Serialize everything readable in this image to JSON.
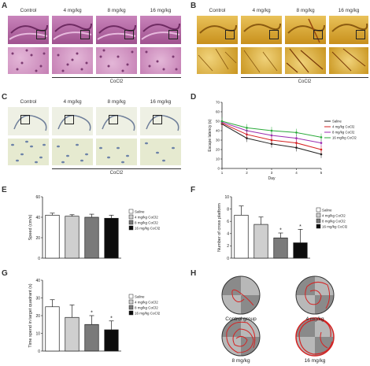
{
  "panels": {
    "A": {
      "label": "A",
      "cols": [
        "Control",
        "4 mg/kg",
        "8 mg/kg",
        "16 mg/kg"
      ],
      "group": "CoCl2"
    },
    "B": {
      "label": "B",
      "cols": [
        "Control",
        "4 mg/kg",
        "8 mg/kg",
        "16 mg/kg"
      ],
      "group": "CoCl2"
    },
    "C": {
      "label": "C",
      "cols": [
        "Control",
        "4 mg/kg",
        "8 mg/kg",
        "16 mg/kg"
      ],
      "group": "CoCl2"
    },
    "D": {
      "label": "D"
    },
    "E": {
      "label": "E"
    },
    "F": {
      "label": "F"
    },
    "G": {
      "label": "G"
    },
    "H": {
      "label": "H",
      "captions": [
        "Control group",
        "4 mg/kg",
        "8 mg/kg",
        "16 mg/kg"
      ]
    }
  },
  "colors": {
    "he_stain": "#b86aa6",
    "he_light": "#dcaad0",
    "silver_stain": "#d9a72e",
    "nissl_bg": "#e9ecd8",
    "bar_saline": "#ffffff",
    "bar_4": "#cfcfcf",
    "bar_8": "#7a7a7a",
    "bar_16": "#0c0c0c",
    "line_saline": "#222222",
    "line_4": "#d62020",
    "line_8": "#9b2bb0",
    "line_16": "#2aaa3a"
  },
  "chart_data": [
    {
      "id": "D",
      "type": "line",
      "ylabel": "Escape latency (s)",
      "xlabel": "Day",
      "x": [
        1,
        2,
        3,
        4,
        5
      ],
      "ylim": [
        0,
        70
      ],
      "yticks": [
        "0",
        "10",
        "20",
        "30",
        "40",
        "50",
        "60",
        "70"
      ],
      "series": [
        {
          "name": "Saline",
          "values": [
            47,
            32,
            26,
            22,
            15
          ],
          "color": "#222222"
        },
        {
          "name": "4 mg/kg CoCl2",
          "values": [
            48,
            36,
            30,
            27,
            20
          ],
          "color": "#d62020"
        },
        {
          "name": "8 mg/kg CoCl2",
          "values": [
            49,
            40,
            35,
            32,
            27
          ],
          "color": "#9b2bb0"
        },
        {
          "name": "16 mg/kg CoCl2",
          "values": [
            50,
            43,
            40,
            38,
            33
          ],
          "color": "#2aaa3a"
        }
      ]
    },
    {
      "id": "E",
      "type": "bar",
      "ylabel": "Speed (cm/s)",
      "categories": [
        "Saline",
        "4 mg/kg CoCl2",
        "8 mg/kg CoCl2",
        "16 mg/kg CoCl2"
      ],
      "values": [
        42,
        41,
        40,
        39
      ],
      "errors": [
        2,
        1.5,
        3,
        3
      ],
      "ylim": [
        0,
        60
      ],
      "yticks": [
        "0",
        "20",
        "40",
        "60"
      ]
    },
    {
      "id": "F",
      "type": "bar",
      "ylabel": "Number of cross platform",
      "categories": [
        "Saline",
        "4 mg/kg CoCl2",
        "8 mg/kg CoCl2",
        "16 mg/kg CoCl2"
      ],
      "values": [
        7,
        5.5,
        3.3,
        2.5
      ],
      "errors": [
        1.5,
        1.2,
        0.8,
        2.2
      ],
      "ylim": [
        0,
        10
      ],
      "yticks": [
        "0",
        "2",
        "4",
        "6",
        "8",
        "10"
      ],
      "sig": [
        "",
        "",
        "*",
        "*"
      ]
    },
    {
      "id": "G",
      "type": "bar",
      "ylabel": "Time spend in target quadrant (s)",
      "categories": [
        "Saline",
        "4 mg/kg CoCl2",
        "8 mg/kg CoCl2",
        "16 mg/kg CoCl2"
      ],
      "values": [
        25,
        19,
        15,
        12
      ],
      "errors": [
        4,
        7,
        5,
        5
      ],
      "ylim": [
        0,
        40
      ],
      "yticks": [
        "0",
        "10",
        "20",
        "30",
        "40"
      ],
      "sig": [
        "",
        "",
        "*",
        "*"
      ]
    }
  ]
}
